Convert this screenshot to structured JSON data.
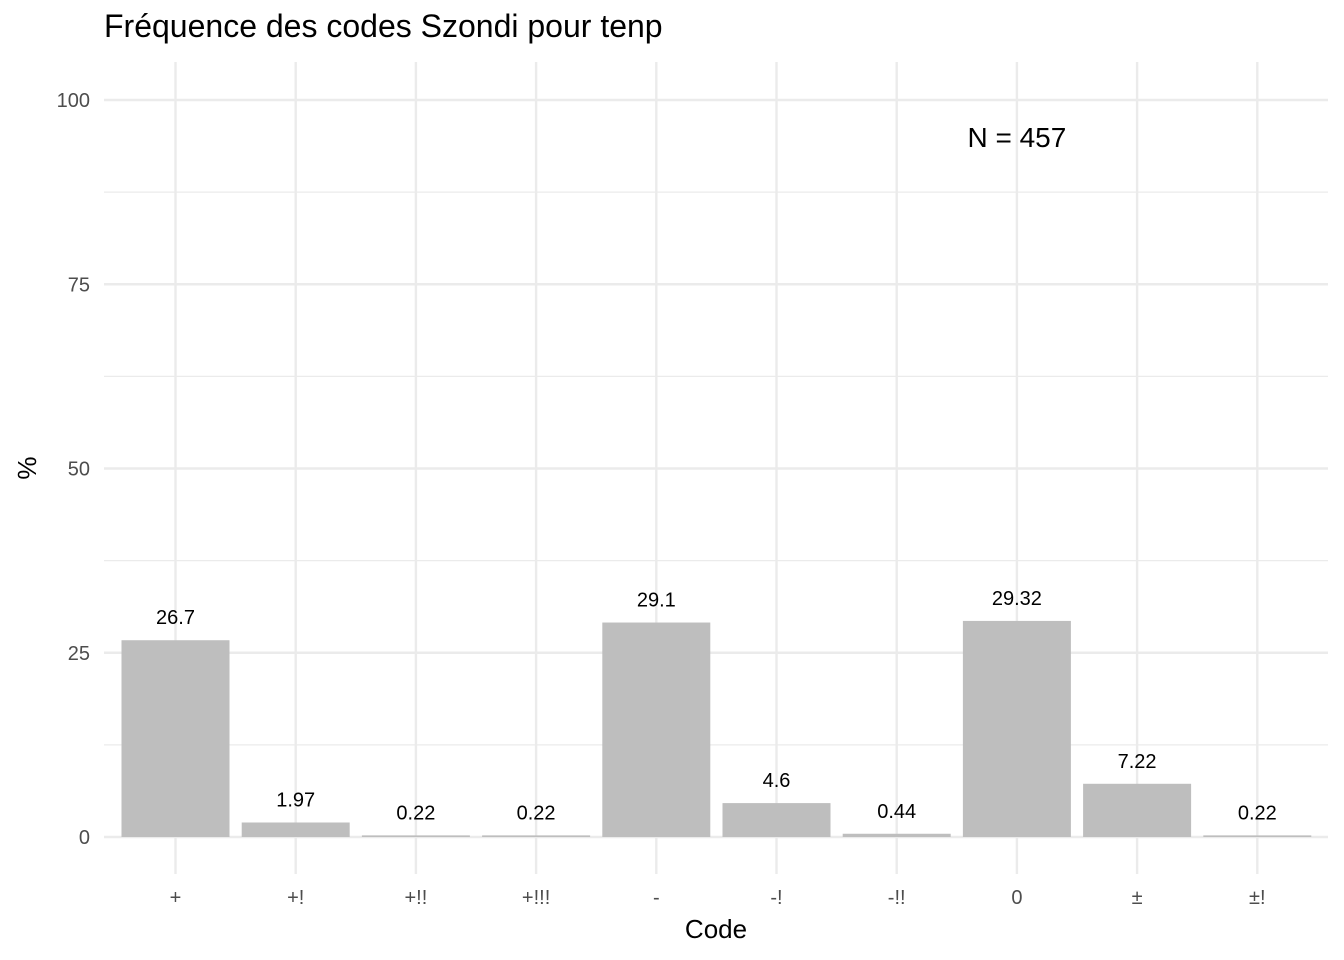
{
  "chart_data": {
    "type": "bar",
    "title": "Fréquence des codes Szondi pour tenp",
    "xlabel": "Code",
    "ylabel": "%",
    "categories": [
      "+",
      "+!",
      "+!!",
      "+!!!",
      "-",
      "-!",
      "-!!",
      "0",
      "±",
      "±!"
    ],
    "values": [
      26.7,
      1.97,
      0.22,
      0.22,
      29.1,
      4.6,
      0.44,
      29.32,
      7.22,
      0.22
    ],
    "data_labels": [
      "26.7",
      "1.97",
      "0.22",
      "0.22",
      "29.1",
      "4.6",
      "0.44",
      "29.32",
      "7.22",
      "0.22"
    ],
    "ylim": [
      0,
      100
    ],
    "yticks": [
      0,
      25,
      50,
      75,
      100
    ],
    "annotation": "N = 457",
    "annotation_x": "0",
    "annotation_y": 95,
    "grid": true,
    "bar_color": "#bebebe",
    "grid_color": "#ebebeb"
  }
}
